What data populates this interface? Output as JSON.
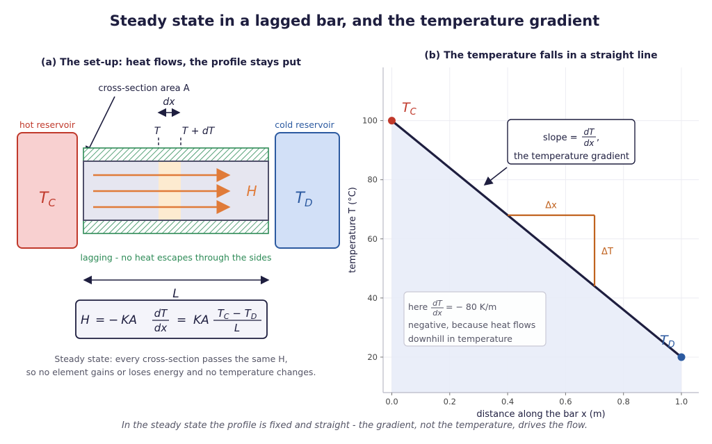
{
  "title": "Steady state in a lagged bar, and the temperature gradient",
  "caption": "In the steady state the profile is fixed and straight - the gradient, not the temperature, drives the flow.",
  "panel_a": {
    "title": "(a) The set-up: heat flows, the profile stays put",
    "cross_section_label": "cross-section area A",
    "dx_label": "dx",
    "t_label": "T",
    "t_dt_label": "T + dT",
    "hot_reservoir_label": "hot reservoir",
    "cold_reservoir_label": "cold reservoir",
    "hot_symbol": "T_C",
    "cold_symbol": "T_D",
    "heat_symbol": "H",
    "lagging_label": "lagging - no heat escapes through the sides",
    "length_label": "L",
    "equation": "H = − KA dT/dx = KA (T_C − T_D)/L",
    "steady_note_line1": "Steady state: every cross-section passes the same H,",
    "steady_note_line2": "so no element gains or loses energy and no temperature changes.",
    "colors": {
      "hot_fill": "#f8d0d0",
      "hot_stroke": "#c0392b",
      "cold_fill": "#d2e0f7",
      "cold_stroke": "#2c5aa0",
      "lagging": "#2e8b57",
      "arrow": "#e07b39",
      "slice": "#fdebd0"
    }
  },
  "panel_b": {
    "title": "(b) The temperature falls in a straight line",
    "slope_box_line1": "slope = dT/dx,",
    "slope_box_line2": "the temperature gradient",
    "delta_x_label": "Δx",
    "delta_t_label": "ΔT",
    "tc_label": "T_C",
    "td_label": "T_D",
    "note_line1": "here dT/dx = − 80 K/m",
    "note_line2": "negative, because heat flows",
    "note_line3": "downhill in temperature"
  },
  "chart_data": {
    "type": "line",
    "title": "(b) The temperature falls in a straight line",
    "xlabel": "distance along the bar  x  (m)",
    "ylabel": "temperature  T  (°C)",
    "xlim": [
      -0.03,
      1.06
    ],
    "ylim": [
      8,
      118
    ],
    "x_ticks": [
      0.0,
      0.2,
      0.4,
      0.6,
      0.8,
      1.0
    ],
    "x_tick_labels": [
      "0.0",
      "0.2",
      "0.4",
      "0.6",
      "0.8",
      "1.0"
    ],
    "y_ticks": [
      20,
      40,
      60,
      80,
      100
    ],
    "y_tick_labels": [
      "20",
      "40",
      "60",
      "80",
      "100"
    ],
    "grid": true,
    "series": [
      {
        "x": [
          0.0,
          1.0
        ],
        "y": [
          100,
          20
        ],
        "color": "#1e1e3f"
      }
    ],
    "endpoints": [
      {
        "x": 0.0,
        "y": 100,
        "color": "#c0392b"
      },
      {
        "x": 1.0,
        "y": 20,
        "color": "#2c5aa0"
      }
    ],
    "slope_triangle": {
      "x0": 0.4,
      "x1": 0.7,
      "y0": 68,
      "y1": 44,
      "color": "#c0621e"
    },
    "fill_color": "#e8ecf8"
  }
}
